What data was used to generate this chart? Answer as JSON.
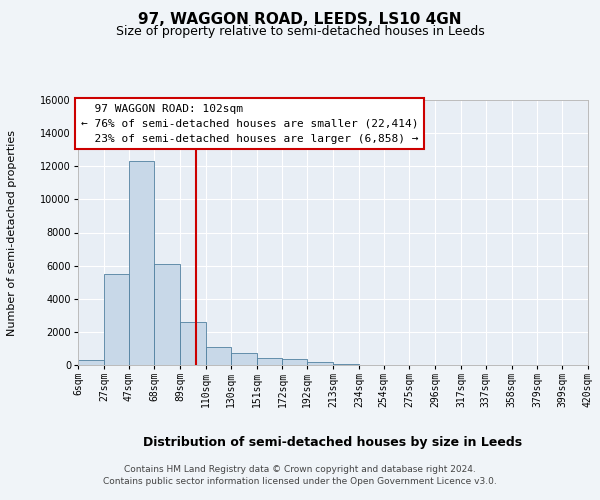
{
  "title": "97, WAGGON ROAD, LEEDS, LS10 4GN",
  "subtitle": "Size of property relative to semi-detached houses in Leeds",
  "xlabel": "Distribution of semi-detached houses by size in Leeds",
  "ylabel": "Number of semi-detached properties",
  "property_label": "97 WAGGON ROAD: 102sqm",
  "pct_smaller": 76,
  "pct_larger": 23,
  "count_smaller": "22,414",
  "count_larger": "6,858",
  "bin_edges": [
    6,
    27,
    47,
    68,
    89,
    110,
    130,
    151,
    172,
    192,
    213,
    234,
    254,
    275,
    296,
    317,
    337,
    358,
    379,
    399,
    420
  ],
  "bin_labels": [
    "6sqm",
    "27sqm",
    "47sqm",
    "68sqm",
    "89sqm",
    "110sqm",
    "130sqm",
    "151sqm",
    "172sqm",
    "192sqm",
    "213sqm",
    "234sqm",
    "254sqm",
    "275sqm",
    "296sqm",
    "317sqm",
    "337sqm",
    "358sqm",
    "379sqm",
    "399sqm",
    "420sqm"
  ],
  "bar_heights": [
    300,
    5500,
    12300,
    6100,
    2600,
    1100,
    700,
    400,
    350,
    200,
    50,
    0,
    0,
    0,
    0,
    0,
    0,
    0,
    0,
    0
  ],
  "bar_color": "#c8d8e8",
  "bar_edge_color": "#5080a0",
  "vline_color": "#cc0000",
  "vline_x": 102,
  "ylim": [
    0,
    16000
  ],
  "yticks": [
    0,
    2000,
    4000,
    6000,
    8000,
    10000,
    12000,
    14000,
    16000
  ],
  "annotation_box_color": "#ffffff",
  "annotation_box_edge": "#cc0000",
  "bg_color": "#f0f4f8",
  "plot_bg_color": "#e8eef5",
  "footer_line1": "Contains HM Land Registry data © Crown copyright and database right 2024.",
  "footer_line2": "Contains public sector information licensed under the Open Government Licence v3.0.",
  "title_fontsize": 11,
  "subtitle_fontsize": 9,
  "ylabel_fontsize": 8,
  "xlabel_fontsize": 9,
  "tick_fontsize": 7,
  "annotation_fontsize": 8,
  "footer_fontsize": 6.5
}
